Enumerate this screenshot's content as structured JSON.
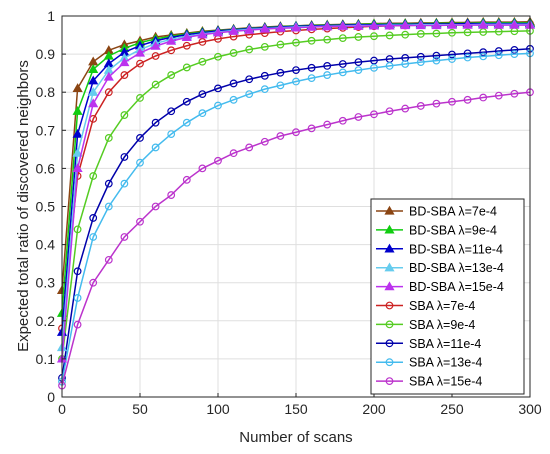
{
  "chart_data": {
    "type": "line",
    "xlabel": "Number of scans",
    "ylabel": "Expected total ratio of discovered neighbors",
    "xlim": [
      0,
      300
    ],
    "ylim": [
      0,
      1
    ],
    "x_ticks": [
      0,
      50,
      100,
      150,
      200,
      250,
      300
    ],
    "y_ticks": [
      0,
      0.1,
      0.2,
      0.3,
      0.4,
      0.5,
      0.6,
      0.7,
      0.8,
      0.9,
      1
    ],
    "x_tick_labels": [
      "0",
      "50",
      "100",
      "150",
      "200",
      "250",
      "300"
    ],
    "y_tick_labels": [
      "0",
      "0.1",
      "0.2",
      "0.3",
      "0.4",
      "0.5",
      "0.6",
      "0.7",
      "0.8",
      "0.9",
      "1"
    ],
    "grid": true,
    "legend_position": "bottom-right",
    "x": [
      0,
      10,
      20,
      30,
      40,
      50,
      60,
      70,
      80,
      90,
      100,
      110,
      120,
      130,
      140,
      150,
      160,
      170,
      180,
      190,
      200,
      210,
      220,
      230,
      240,
      250,
      260,
      270,
      280,
      290,
      300
    ],
    "series": [
      {
        "name": "BD-SBA λ=7e-4",
        "color": "#8B4513",
        "marker": "triangle",
        "values": [
          0.28,
          0.81,
          0.88,
          0.91,
          0.925,
          0.935,
          0.945,
          0.95,
          0.955,
          0.96,
          0.963,
          0.966,
          0.969,
          0.971,
          0.973,
          0.974,
          0.976,
          0.977,
          0.978,
          0.979,
          0.98,
          0.981,
          0.981,
          0.982,
          0.982,
          0.983,
          0.983,
          0.984,
          0.984,
          0.984,
          0.985
        ]
      },
      {
        "name": "BD-SBA λ=9e-4",
        "color": "#11CC11",
        "marker": "triangle",
        "values": [
          0.22,
          0.75,
          0.86,
          0.895,
          0.915,
          0.93,
          0.94,
          0.947,
          0.953,
          0.958,
          0.962,
          0.965,
          0.968,
          0.97,
          0.972,
          0.974,
          0.975,
          0.976,
          0.977,
          0.978,
          0.979,
          0.979,
          0.98,
          0.98,
          0.981,
          0.981,
          0.981,
          0.982,
          0.982,
          0.982,
          0.982
        ]
      },
      {
        "name": "BD-SBA λ=11e-4",
        "color": "#0000CC",
        "marker": "triangle",
        "values": [
          0.17,
          0.69,
          0.83,
          0.875,
          0.905,
          0.922,
          0.935,
          0.944,
          0.951,
          0.956,
          0.961,
          0.964,
          0.967,
          0.969,
          0.971,
          0.973,
          0.974,
          0.975,
          0.976,
          0.977,
          0.977,
          0.978,
          0.978,
          0.979,
          0.979,
          0.979,
          0.98,
          0.98,
          0.98,
          0.98,
          0.98
        ]
      },
      {
        "name": "BD-SBA λ=13e-4",
        "color": "#66CCEE",
        "marker": "triangle",
        "values": [
          0.13,
          0.64,
          0.8,
          0.858,
          0.89,
          0.912,
          0.928,
          0.939,
          0.947,
          0.953,
          0.958,
          0.962,
          0.965,
          0.967,
          0.969,
          0.971,
          0.972,
          0.973,
          0.974,
          0.975,
          0.975,
          0.976,
          0.976,
          0.977,
          0.977,
          0.977,
          0.977,
          0.978,
          0.978,
          0.978,
          0.978
        ]
      },
      {
        "name": "BD-SBA λ=15e-4",
        "color": "#BB33EE",
        "marker": "triangle",
        "values": [
          0.1,
          0.6,
          0.77,
          0.84,
          0.878,
          0.903,
          0.921,
          0.934,
          0.944,
          0.951,
          0.956,
          0.96,
          0.963,
          0.966,
          0.968,
          0.969,
          0.971,
          0.972,
          0.973,
          0.973,
          0.974,
          0.974,
          0.975,
          0.975,
          0.975,
          0.976,
          0.976,
          0.976,
          0.976,
          0.976,
          0.976
        ]
      },
      {
        "name": "SBA λ=7e-4",
        "color": "#CC2222",
        "marker": "circle",
        "values": [
          0.18,
          0.58,
          0.73,
          0.8,
          0.845,
          0.875,
          0.895,
          0.91,
          0.922,
          0.932,
          0.94,
          0.946,
          0.951,
          0.955,
          0.959,
          0.962,
          0.965,
          0.967,
          0.969,
          0.971,
          0.973,
          0.974,
          0.975,
          0.976,
          0.977,
          0.978,
          0.978,
          0.979,
          0.979,
          0.98,
          0.98
        ]
      },
      {
        "name": "SBA λ=9e-4",
        "color": "#55CC22",
        "marker": "circle",
        "values": [
          0.1,
          0.44,
          0.58,
          0.68,
          0.74,
          0.785,
          0.82,
          0.845,
          0.865,
          0.88,
          0.893,
          0.903,
          0.912,
          0.919,
          0.925,
          0.93,
          0.935,
          0.938,
          0.942,
          0.945,
          0.947,
          0.949,
          0.951,
          0.953,
          0.954,
          0.956,
          0.957,
          0.958,
          0.959,
          0.96,
          0.961
        ]
      },
      {
        "name": "SBA λ=11e-4",
        "color": "#0000AA",
        "marker": "circle",
        "values": [
          0.05,
          0.33,
          0.47,
          0.56,
          0.63,
          0.68,
          0.72,
          0.75,
          0.775,
          0.795,
          0.81,
          0.823,
          0.834,
          0.843,
          0.851,
          0.858,
          0.864,
          0.869,
          0.874,
          0.879,
          0.883,
          0.887,
          0.89,
          0.893,
          0.896,
          0.899,
          0.902,
          0.905,
          0.908,
          0.911,
          0.914
        ]
      },
      {
        "name": "SBA λ=13e-4",
        "color": "#44BBEE",
        "marker": "circle",
        "values": [
          0.04,
          0.26,
          0.42,
          0.5,
          0.56,
          0.615,
          0.655,
          0.69,
          0.72,
          0.745,
          0.765,
          0.78,
          0.795,
          0.808,
          0.818,
          0.828,
          0.837,
          0.845,
          0.852,
          0.858,
          0.864,
          0.869,
          0.874,
          0.879,
          0.883,
          0.887,
          0.891,
          0.894,
          0.897,
          0.9,
          0.902
        ]
      },
      {
        "name": "SBA λ=15e-4",
        "color": "#BB33CC",
        "marker": "circle",
        "values": [
          0.03,
          0.19,
          0.3,
          0.36,
          0.42,
          0.46,
          0.5,
          0.53,
          0.57,
          0.6,
          0.62,
          0.64,
          0.655,
          0.67,
          0.685,
          0.695,
          0.705,
          0.715,
          0.725,
          0.735,
          0.742,
          0.75,
          0.757,
          0.764,
          0.77,
          0.775,
          0.78,
          0.786,
          0.791,
          0.796,
          0.8
        ]
      }
    ]
  }
}
